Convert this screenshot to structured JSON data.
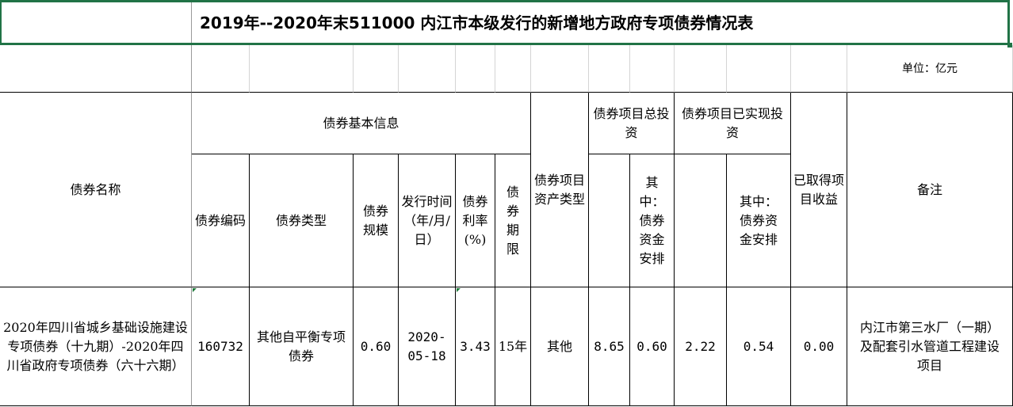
{
  "title": "2019年--2020年末511000 内江市本级发行的新增地方政府专项债券情况表",
  "unit": "单位：亿元",
  "headers": {
    "bond_name": "债券名称",
    "basic_info": "债券基本信息",
    "bond_code": "债券编码",
    "bond_type": "债券类型",
    "bond_scale": "债券规模",
    "issue_date": "发行时间（年/月/日）",
    "rate": "债券利率(%)",
    "term": "债券期限",
    "asset_type": "债券项目资产类型",
    "total_invest": "债券项目总投资",
    "total_invest_bond": "其中：债券资金安排",
    "realized_invest": "债券项目已实现投资",
    "realized_invest_bond": "其中：债券资金安排",
    "income": "已取得项目收益",
    "remark": "备注"
  },
  "rows": [
    {
      "bond_name": "2020年四川省城乡基础设施建设专项债券（十九期）-2020年四川省政府专项债券（六十六期）",
      "bond_code": "160732",
      "bond_type": "其他自平衡专项债券",
      "bond_scale": "0.60",
      "issue_date": "2020-05-18",
      "rate": "3.43",
      "term": "15年",
      "asset_type": "其他",
      "total_invest": "8.65",
      "total_invest_bond": "0.60",
      "realized_invest": "2.22",
      "realized_invest_bond": "0.54",
      "income": "0.00",
      "remark": "内江市第三水厂（一期）及配套引水管道工程建设项目"
    }
  ],
  "colors": {
    "selection_border": "#217346",
    "cell_marker": "#1e7a3a"
  }
}
